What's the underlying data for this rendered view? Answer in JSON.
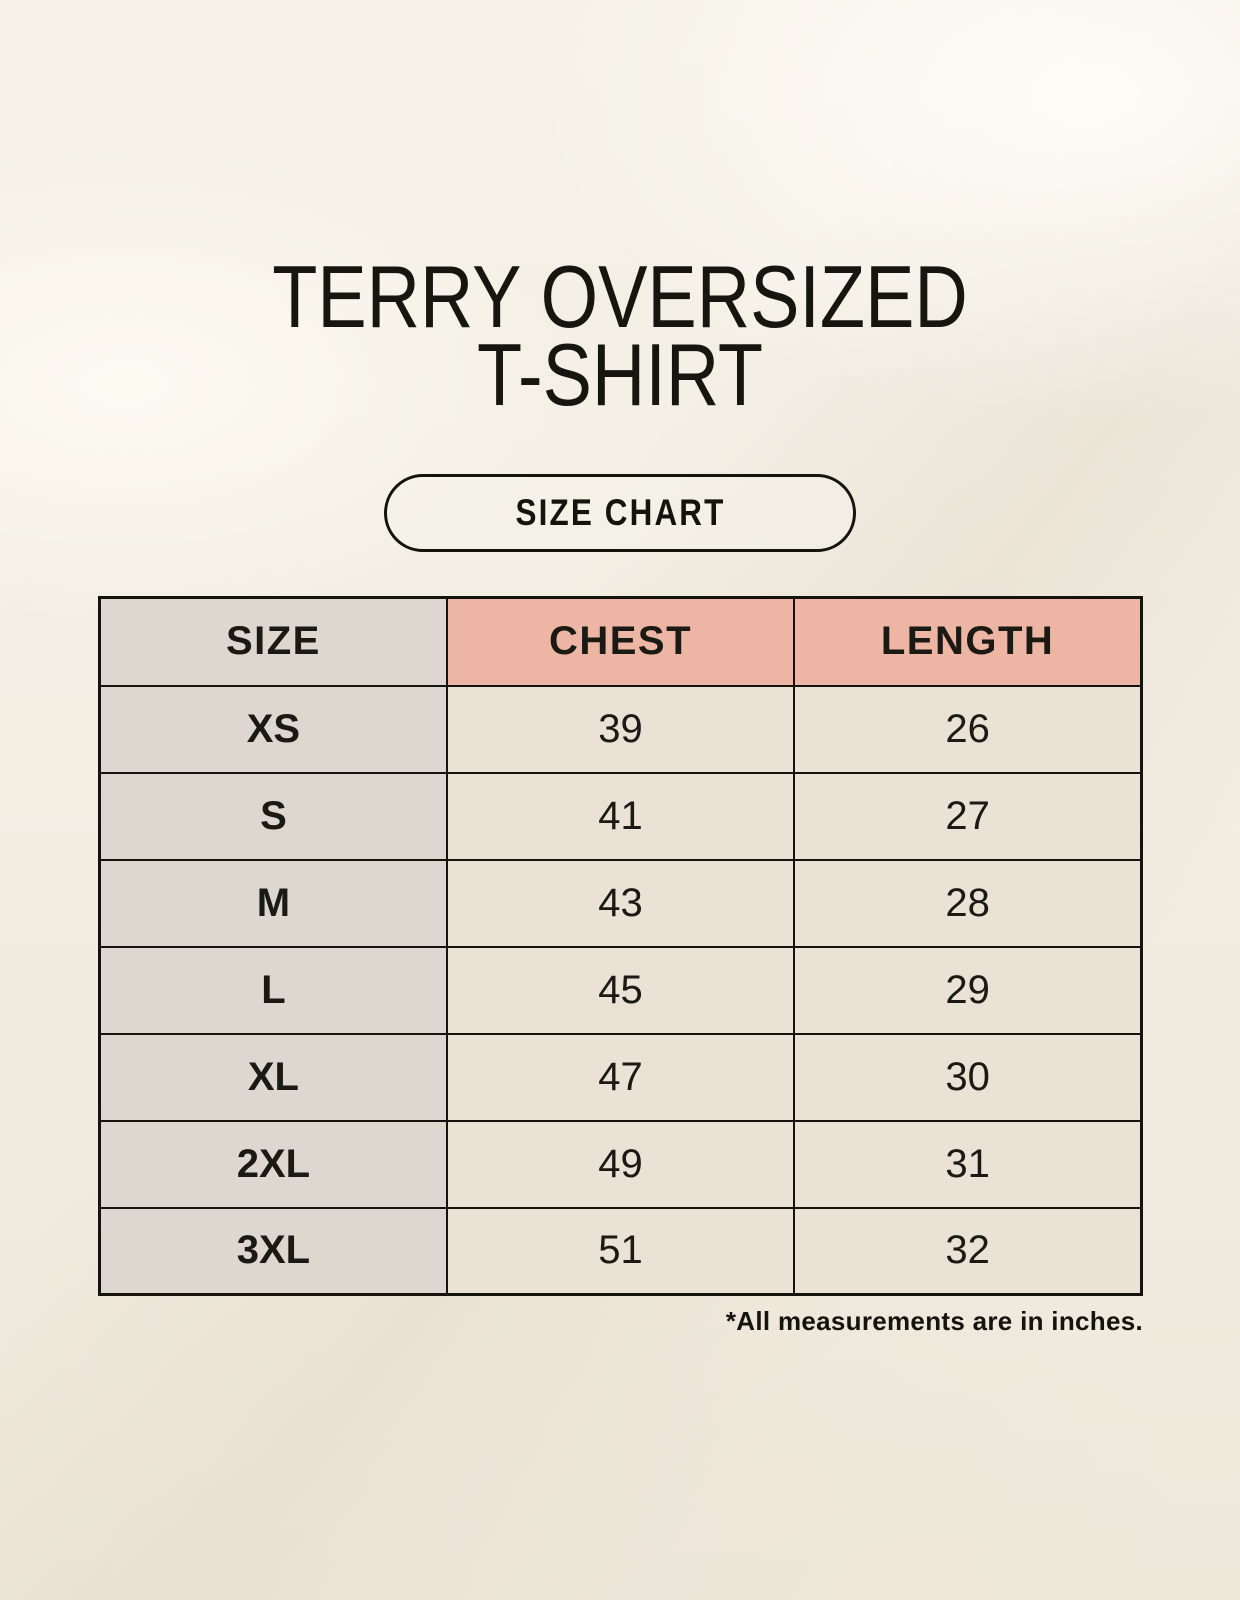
{
  "header": {
    "title_line1": "TERRY OVERSIZED",
    "title_line2": "T-SHIRT",
    "badge_label": "SIZE CHART"
  },
  "chart_data": {
    "type": "table",
    "title": "TERRY OVERSIZED T-SHIRT",
    "columns": [
      "SIZE",
      "CHEST",
      "LENGTH"
    ],
    "rows": [
      {
        "size": "XS",
        "chest": "39",
        "length": "26"
      },
      {
        "size": "S",
        "chest": "41",
        "length": "27"
      },
      {
        "size": "M",
        "chest": "43",
        "length": "28"
      },
      {
        "size": "L",
        "chest": "45",
        "length": "29"
      },
      {
        "size": "XL",
        "chest": "47",
        "length": "30"
      },
      {
        "size": "2XL",
        "chest": "49",
        "length": "31"
      },
      {
        "size": "3XL",
        "chest": "51",
        "length": "32"
      }
    ]
  },
  "footnote": "*All measurements are in inches.",
  "colors": {
    "background": "#f2ede2",
    "accent_header_bg": "#edb5a4",
    "size_column_bg": "#ded7d0",
    "data_cell_bg": "#e9e2d5",
    "table_border": "#14130e",
    "text": "#1a1914"
  }
}
